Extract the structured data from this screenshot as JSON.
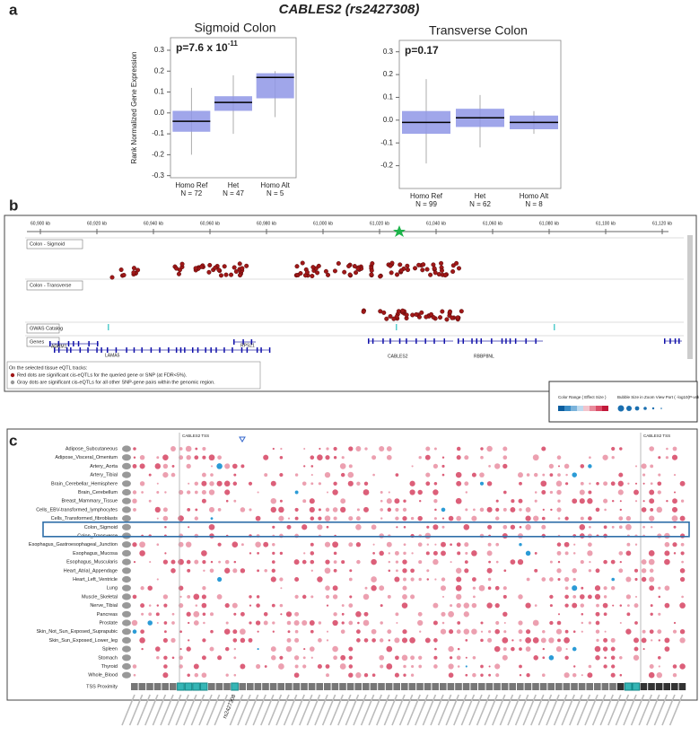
{
  "panel_labels": [
    "a",
    "b",
    "c"
  ],
  "figure_title": "CABLES2 (rs2427308)",
  "chart_data": [
    {
      "type": "box",
      "title": "Sigmoid Colon",
      "annotation": "p=7.6 x 10",
      "annotation_sup": "-11",
      "ylabel": "Rank Normalized Gene Expression",
      "categories": [
        "Homo Ref",
        "Het",
        "Homo Alt"
      ],
      "n_labels": [
        "N = 72",
        "N = 47",
        "N = 5"
      ],
      "whislo": [
        -0.2,
        -0.1,
        -0.02
      ],
      "q1": [
        -0.09,
        0.01,
        0.07
      ],
      "median": [
        -0.04,
        0.05,
        0.17
      ],
      "q3": [
        0.01,
        0.08,
        0.19
      ],
      "whishi": [
        0.12,
        0.18,
        0.2
      ],
      "color": "#8f96e6",
      "ylim": [
        -0.31,
        0.36
      ],
      "yticks": [
        0.3,
        0.2,
        0.1,
        {
          "value": 0,
          "label": "0.0"
        },
        -0.1,
        -0.2,
        -0.3
      ]
    },
    {
      "type": "box",
      "title": "Transverse Colon",
      "annotation": "p=0.17",
      "categories": [
        "Homo Ref",
        "Het",
        "Homo Alt"
      ],
      "n_labels": [
        "N = 99",
        "N = 62",
        "N = 8"
      ],
      "whislo": [
        -0.19,
        -0.12,
        -0.06
      ],
      "q1": [
        -0.06,
        -0.03,
        -0.04
      ],
      "median": [
        -0.01,
        0.01,
        -0.01
      ],
      "q3": [
        0.04,
        0.05,
        0.02
      ],
      "whishi": [
        0.18,
        0.11,
        0.04
      ],
      "color": "#8f96e6",
      "ylim": [
        -0.3,
        0.35
      ],
      "yticks": [
        0.3,
        0.2,
        0.1,
        {
          "value": 0,
          "label": "0.0"
        },
        -0.1,
        -0.2
      ]
    }
  ],
  "browser": {
    "ruler": [
      "60,900 kb",
      "60,920 kb",
      "60,940 kb",
      "60,960 kb",
      "60,980 kb",
      "61,000 kb",
      "61,020 kb",
      "61,040 kb",
      "61,060 kb",
      "61,080 kb",
      "61,100 kb",
      "61,120 kb"
    ],
    "tracks": [
      "Colon - Sigmoid",
      "Colon - Transverse",
      "GWAS Catalog",
      "Genes"
    ],
    "genes": [
      "ADRM1",
      "LAMA5",
      "RPS21",
      "CABLES2",
      "RBBP8NL"
    ],
    "legend": [
      "On the selected tissue eQTL tracks:",
      "Red dots are significant cis-eQTLs for the queried gene or SNP (at FDR<5%).",
      "Gray dots are significant cis-eQTLs for all other SNP-gene pairs within the genomic region."
    ]
  },
  "matrix": {
    "legend_titles": [
      "Color Range ( Effect Size )",
      "Bubble Size in Zoom View Port ( -log10(P-value) )"
    ],
    "tss_label": "CABLES2 TSS",
    "tissues": [
      "Adipose_Subcutaneous",
      "Adipose_Visceral_Omentum",
      "Artery_Aorta",
      "Artery_Tibial",
      "Brain_Cerebellar_Hemisphere",
      "Brain_Cerebellum",
      "Breast_Mammary_Tissue",
      "Cells_EBV-transformed_lymphocytes",
      "Cells_Transformed_fibroblasts",
      "Colon_Sigmoid",
      "Colon_Transverse",
      "Esophagus_Gastroesophageal_Junction",
      "Esophagus_Mucosa",
      "Esophagus_Muscularis",
      "Heart_Atrial_Appendage",
      "Heart_Left_Ventricle",
      "Lung",
      "Muscle_Skeletal",
      "Nerve_Tibial",
      "Pancreas",
      "Prostate",
      "Skin_Not_Sun_Exposed_Suprapubic",
      "Skin_Sun_Exposed_Lower_leg",
      "Spleen",
      "Stomach",
      "Thyroid",
      "Whole_Blood"
    ],
    "row_label": "TSS Proximity",
    "snp": "rs2427308"
  }
}
